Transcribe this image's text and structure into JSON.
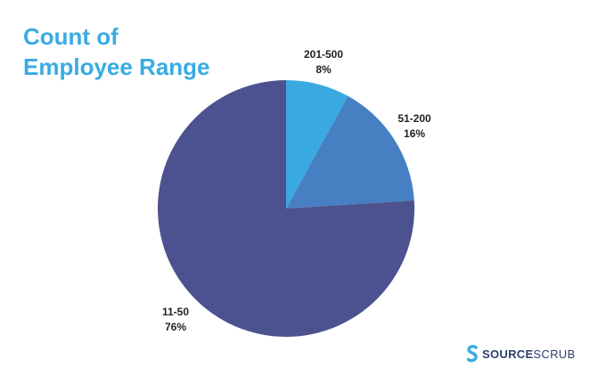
{
  "title_lines": [
    "Count of",
    "Employee Range"
  ],
  "chart_data": {
    "type": "pie",
    "title": "Count of Employee Range",
    "slices": [
      {
        "label": "201-500",
        "value": 8,
        "value_label": "8%",
        "color": "#38aae1"
      },
      {
        "label": "51-200",
        "value": 16,
        "value_label": "16%",
        "color": "#4680c2"
      },
      {
        "label": "11-50",
        "value": 76,
        "value_label": "76%",
        "color": "#4c528f"
      }
    ],
    "start_angle": "12 o'clock",
    "direction": "clockwise"
  },
  "brand": {
    "name_bold": "SOURCE",
    "name_light": "SCRUB",
    "icon": "sourcescrub-logo-icon",
    "color": "#2c3e6b",
    "icon_color": "#3aabe2"
  }
}
